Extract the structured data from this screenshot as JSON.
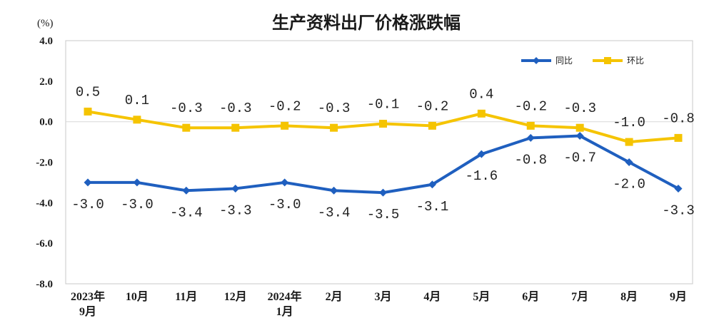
{
  "chart_data": {
    "type": "line",
    "title": "生产资料出厂价格涨跌幅",
    "unit_label": "(%)",
    "categories": [
      [
        "2023年",
        "9月"
      ],
      [
        "10月"
      ],
      [
        "11月"
      ],
      [
        "12月"
      ],
      [
        "2024年",
        "1月"
      ],
      [
        "2月"
      ],
      [
        "3月"
      ],
      [
        "4月"
      ],
      [
        "5月"
      ],
      [
        "6月"
      ],
      [
        "7月"
      ],
      [
        "8月"
      ],
      [
        "9月"
      ]
    ],
    "ylim": [
      -8.0,
      4.0
    ],
    "yticks": [
      "4.0",
      "2.0",
      "0.0",
      "-2.0",
      "-4.0",
      "-6.0",
      "-8.0"
    ],
    "legend_position": "top-right",
    "series": [
      {
        "name": "同比",
        "color": "#1f5fbf",
        "marker": "diamond",
        "values": [
          -3.0,
          -3.0,
          -3.4,
          -3.3,
          -3.0,
          -3.4,
          -3.5,
          -3.1,
          -1.6,
          -0.8,
          -0.7,
          -2.0,
          -3.3
        ],
        "labels": [
          "-3.0",
          "-3.0",
          "-3.4",
          "-3.3",
          "-3.0",
          "-3.4",
          "-3.5",
          "-3.1",
          "-1.6",
          "-0.8",
          "-0.7",
          "-2.0",
          "-3.3"
        ]
      },
      {
        "name": "环比",
        "color": "#f5c400",
        "marker": "square",
        "values": [
          0.5,
          0.1,
          -0.3,
          -0.3,
          -0.2,
          -0.3,
          -0.1,
          -0.2,
          0.4,
          -0.2,
          -0.3,
          -1.0,
          -0.8
        ],
        "labels": [
          "0.5",
          "0.1",
          "-0.3",
          "-0.3",
          "-0.2",
          "-0.3",
          "-0.1",
          "-0.2",
          "0.4",
          "-0.2",
          "-0.3",
          "-1.0",
          "-0.8"
        ]
      }
    ]
  }
}
